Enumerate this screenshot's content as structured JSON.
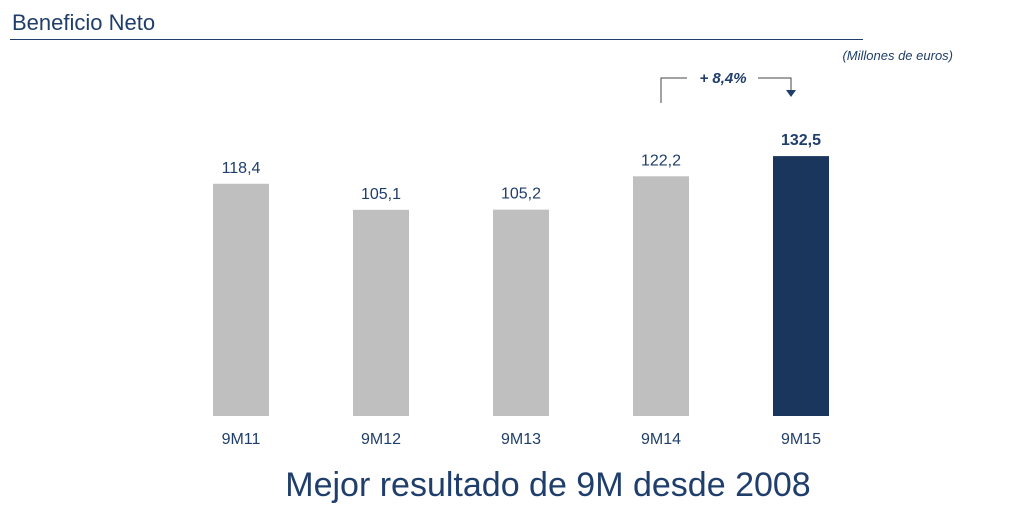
{
  "header": {
    "title": "Beneficio Neto",
    "unit": "(Millones de euros)",
    "message": "Mejor resultado de 9M desde 2008"
  },
  "colors": {
    "base_bar": "#bfbfbf",
    "highlight_bar": "#1a365d",
    "text": "#1f3e6b"
  },
  "chart_data": {
    "type": "bar",
    "categories": [
      "9M11",
      "9M12",
      "9M13",
      "9M14",
      "9M15"
    ],
    "values": [
      118.4,
      105.1,
      105.2,
      122.2,
      132.5
    ],
    "value_labels": [
      "118,4",
      "105,1",
      "105,2",
      "122,2",
      "132,5"
    ],
    "highlight_index": 4,
    "annotation": {
      "text": "+ 8,4%",
      "from": "9M14",
      "to": "9M15"
    },
    "title": "Beneficio Neto",
    "ylabel": "",
    "xlabel": "",
    "grid": false,
    "legend": "none"
  }
}
